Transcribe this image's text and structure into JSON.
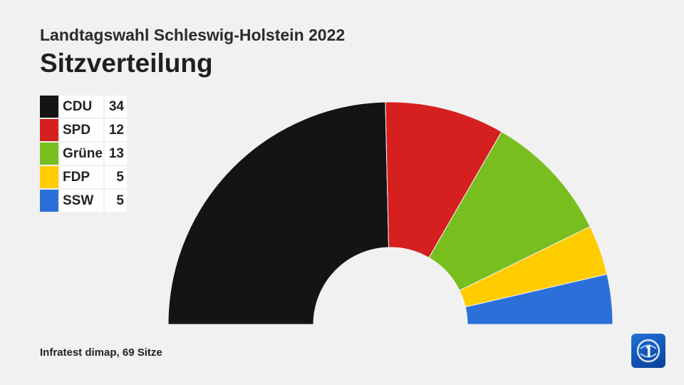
{
  "header": {
    "subtitle": "Landtagswahl Schleswig-Holstein 2022",
    "title": "Sitzverteilung"
  },
  "chart_data": {
    "type": "pie",
    "shape": "half-donut (parliament seat distribution)",
    "title": "Sitzverteilung",
    "subtitle": "Landtagswahl Schleswig-Holstein 2022",
    "legend_position": "top-left",
    "total_seats": 69,
    "series": [
      {
        "name": "CDU",
        "value": 34,
        "color": "#141414"
      },
      {
        "name": "SPD",
        "value": 12,
        "color": "#d61f1f"
      },
      {
        "name": "Grüne",
        "value": 13,
        "color": "#78be1e"
      },
      {
        "name": "FDP",
        "value": 5,
        "color": "#ffcc00"
      },
      {
        "name": "SSW",
        "value": 5,
        "color": "#2a70d8"
      }
    ]
  },
  "footer": {
    "source": "Infratest dimap, 69 Sitze"
  },
  "logo": {
    "icon": "tagesschau-one-logo-icon"
  }
}
